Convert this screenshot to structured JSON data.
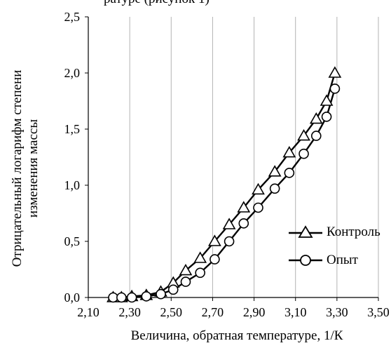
{
  "chart_data": {
    "type": "line",
    "title": "ратуре (рисунок 1)",
    "xlabel": "Величина, обратная температуре, 1/К",
    "ylabel_lines": [
      "Отрицательный логарифм степени",
      "изменения массы"
    ],
    "xlim": [
      2.1,
      3.5
    ],
    "ylim": [
      0,
      2.5
    ],
    "x_ticks": [
      "2,10",
      "2,30",
      "2,50",
      "2,70",
      "2,90",
      "3,10",
      "3,30",
      "3,50"
    ],
    "y_ticks": [
      "0,0",
      "0,5",
      "1,0",
      "1,5",
      "2,0",
      "2,5"
    ],
    "grid": "vertical",
    "legend_position": "right",
    "series": [
      {
        "name": "Контроль",
        "marker": "triangle",
        "x": [
          2.22,
          2.26,
          2.31,
          2.38,
          2.45,
          2.51,
          2.57,
          2.64,
          2.71,
          2.78,
          2.85,
          2.92,
          3.0,
          3.07,
          3.14,
          3.2,
          3.25,
          3.29
        ],
        "y": [
          0.0,
          0.0,
          0.01,
          0.02,
          0.05,
          0.13,
          0.24,
          0.35,
          0.5,
          0.65,
          0.8,
          0.96,
          1.12,
          1.29,
          1.44,
          1.59,
          1.75,
          2.0
        ]
      },
      {
        "name": "Опыт",
        "marker": "circle",
        "x": [
          2.22,
          2.26,
          2.31,
          2.38,
          2.45,
          2.51,
          2.57,
          2.64,
          2.71,
          2.78,
          2.85,
          2.92,
          3.0,
          3.07,
          3.14,
          3.2,
          3.25,
          3.29
        ],
        "y": [
          0.0,
          0.0,
          0.0,
          0.01,
          0.03,
          0.07,
          0.14,
          0.22,
          0.34,
          0.5,
          0.66,
          0.8,
          0.97,
          1.11,
          1.28,
          1.44,
          1.61,
          1.86
        ]
      }
    ]
  }
}
